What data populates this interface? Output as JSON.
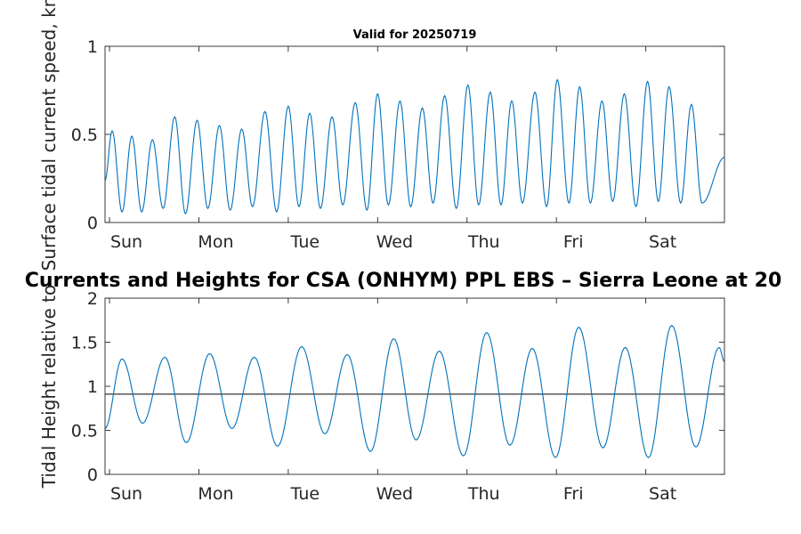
{
  "chart_data": [
    {
      "type": "line",
      "title": "Valid for 20250719",
      "ylabel": "Surface tidal current speed, kn",
      "xlim": [
        0,
        6.93
      ],
      "ylim": [
        0,
        1
      ],
      "yticks": [
        0,
        0.5,
        1
      ],
      "yticklabels": [
        "0",
        "0.5",
        "1"
      ],
      "xticks": [
        0.05,
        1.05,
        2.05,
        3.05,
        4.05,
        5.05,
        6.05
      ],
      "xticklabels": [
        "Sun",
        "Mon",
        "Tue",
        "Wed",
        "Thu",
        "Fri",
        "Sat"
      ],
      "grid": false,
      "line_color": "#0072BD",
      "series": [
        {
          "extrema": [
            [
              0.0,
              0.24
            ],
            [
              0.08,
              0.52
            ],
            [
              0.19,
              0.06
            ],
            [
              0.3,
              0.49
            ],
            [
              0.41,
              0.06
            ],
            [
              0.53,
              0.47
            ],
            [
              0.65,
              0.08
            ],
            [
              0.78,
              0.6
            ],
            [
              0.9,
              0.05
            ],
            [
              1.03,
              0.58
            ],
            [
              1.15,
              0.08
            ],
            [
              1.28,
              0.55
            ],
            [
              1.4,
              0.07
            ],
            [
              1.53,
              0.53
            ],
            [
              1.65,
              0.09
            ],
            [
              1.79,
              0.63
            ],
            [
              1.92,
              0.06
            ],
            [
              2.05,
              0.66
            ],
            [
              2.17,
              0.09
            ],
            [
              2.29,
              0.62
            ],
            [
              2.41,
              0.08
            ],
            [
              2.54,
              0.6
            ],
            [
              2.66,
              0.1
            ],
            [
              2.8,
              0.68
            ],
            [
              2.93,
              0.07
            ],
            [
              3.05,
              0.73
            ],
            [
              3.17,
              0.1
            ],
            [
              3.3,
              0.69
            ],
            [
              3.42,
              0.09
            ],
            [
              3.55,
              0.65
            ],
            [
              3.67,
              0.11
            ],
            [
              3.8,
              0.72
            ],
            [
              3.93,
              0.08
            ],
            [
              4.06,
              0.78
            ],
            [
              4.18,
              0.1
            ],
            [
              4.31,
              0.74
            ],
            [
              4.43,
              0.1
            ],
            [
              4.55,
              0.69
            ],
            [
              4.67,
              0.11
            ],
            [
              4.81,
              0.74
            ],
            [
              4.94,
              0.09
            ],
            [
              5.06,
              0.81
            ],
            [
              5.19,
              0.11
            ],
            [
              5.31,
              0.77
            ],
            [
              5.43,
              0.11
            ],
            [
              5.56,
              0.69
            ],
            [
              5.68,
              0.12
            ],
            [
              5.81,
              0.73
            ],
            [
              5.94,
              0.09
            ],
            [
              6.07,
              0.8
            ],
            [
              6.19,
              0.12
            ],
            [
              6.31,
              0.77
            ],
            [
              6.44,
              0.11
            ],
            [
              6.56,
              0.67
            ],
            [
              6.68,
              0.11
            ],
            [
              6.93,
              0.37
            ]
          ]
        }
      ]
    },
    {
      "type": "line",
      "title": "Currents and Heights for CSA (ONHYM) PPL EBS  – Sierra Leone at 20",
      "ylabel": "Tidal Height relative to",
      "xlim": [
        0,
        6.93
      ],
      "ylim": [
        0,
        2
      ],
      "yticks": [
        0,
        0.5,
        1,
        1.5,
        2
      ],
      "yticklabels": [
        "0",
        "0.5",
        "1",
        "1.5",
        "2"
      ],
      "xticks": [
        0.05,
        1.05,
        2.05,
        3.05,
        4.05,
        5.05,
        6.05
      ],
      "xticklabels": [
        "Sun",
        "Mon",
        "Tue",
        "Wed",
        "Thu",
        "Fri",
        "Sat"
      ],
      "grid": false,
      "line_color": "#0072BD",
      "reference_line": 0.91,
      "reference_color": "#000000",
      "series": [
        {
          "extrema": [
            [
              0.0,
              0.52
            ],
            [
              0.19,
              1.31
            ],
            [
              0.42,
              0.58
            ],
            [
              0.67,
              1.33
            ],
            [
              0.91,
              0.36
            ],
            [
              1.17,
              1.37
            ],
            [
              1.42,
              0.52
            ],
            [
              1.67,
              1.33
            ],
            [
              1.93,
              0.32
            ],
            [
              2.2,
              1.45
            ],
            [
              2.46,
              0.46
            ],
            [
              2.71,
              1.36
            ],
            [
              2.97,
              0.26
            ],
            [
              3.23,
              1.54
            ],
            [
              3.48,
              0.39
            ],
            [
              3.74,
              1.4
            ],
            [
              4.01,
              0.21
            ],
            [
              4.27,
              1.61
            ],
            [
              4.53,
              0.33
            ],
            [
              4.78,
              1.43
            ],
            [
              5.04,
              0.19
            ],
            [
              5.3,
              1.67
            ],
            [
              5.57,
              0.3
            ],
            [
              5.82,
              1.44
            ],
            [
              6.08,
              0.19
            ],
            [
              6.34,
              1.69
            ],
            [
              6.61,
              0.31
            ],
            [
              6.87,
              1.44
            ],
            [
              6.93,
              1.28
            ]
          ]
        }
      ]
    }
  ]
}
